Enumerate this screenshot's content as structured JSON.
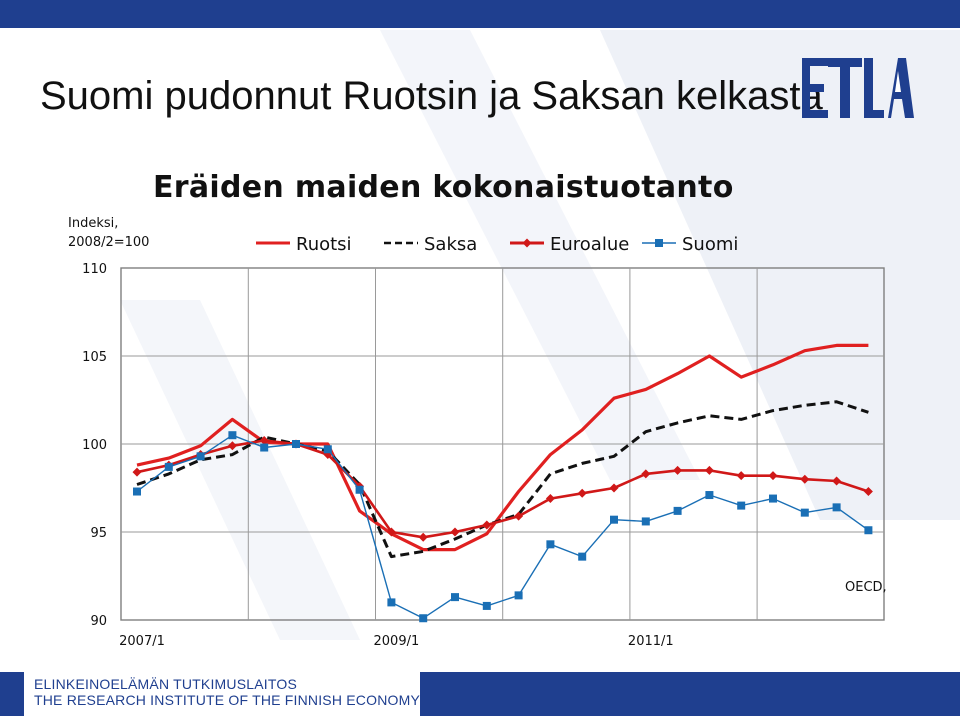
{
  "slide": {
    "title": "Suomi pudonnut Ruotsin ja Saksan kelkasta",
    "logo_text": "ETLA",
    "footer_line1": "ELINKEINOELÄMÄN TUTKIMUSLAITOS",
    "footer_line2": "THE RESEARCH INSTITUTE OF THE FINNISH ECONOMY",
    "brand_color": "#1f3f8f"
  },
  "chart_data": {
    "type": "line",
    "title": "Eräiden maiden kokonaistuotanto",
    "ylabel_line1": "Indeksi,",
    "ylabel_line2": "2008/2=100",
    "source_note": "OECD,",
    "ylim": [
      90,
      110
    ],
    "yticks": [
      "110",
      "105",
      "100",
      "95",
      "90"
    ],
    "xtick_labels": [
      "2007/1",
      "2009/1",
      "2011/1"
    ],
    "grid": true,
    "legend_position": "top",
    "x": [
      "2007/1",
      "2007/2",
      "2007/3",
      "2007/4",
      "2008/1",
      "2008/2",
      "2008/3",
      "2008/4",
      "2009/1",
      "2009/2",
      "2009/3",
      "2009/4",
      "2010/1",
      "2010/2",
      "2010/3",
      "2010/4",
      "2011/1",
      "2011/2",
      "2011/3",
      "2011/4",
      "2012/1",
      "2012/2",
      "2012/3",
      "2012/4"
    ],
    "series": [
      {
        "name": "Ruotsi",
        "color": "#e02020",
        "dash": "solid",
        "marker": "none",
        "values": [
          98.8,
          99.2,
          99.9,
          101.4,
          100.1,
          100.0,
          100.0,
          96.2,
          94.9,
          94.0,
          94.0,
          94.9,
          97.3,
          99.4,
          100.8,
          102.6,
          103.1,
          104.0,
          105.0,
          103.8,
          104.5,
          105.3,
          105.6,
          105.6
        ]
      },
      {
        "name": "Saksa",
        "color": "#111111",
        "dash": "dashed",
        "marker": "none",
        "values": [
          97.7,
          98.3,
          99.1,
          99.4,
          100.4,
          100.0,
          99.6,
          97.7,
          93.6,
          93.9,
          94.6,
          95.4,
          96.0,
          98.3,
          98.9,
          99.3,
          100.7,
          101.2,
          101.6,
          101.4,
          101.9,
          102.2,
          102.4,
          101.8
        ]
      },
      {
        "name": "Euroalue",
        "color": "#d01818",
        "dash": "solid",
        "marker": "diamond",
        "values": [
          98.4,
          98.8,
          99.4,
          99.9,
          100.2,
          100.0,
          99.4,
          97.6,
          95.0,
          94.7,
          95.0,
          95.4,
          95.9,
          96.9,
          97.2,
          97.5,
          98.3,
          98.5,
          98.5,
          98.2,
          98.2,
          98.0,
          97.9,
          97.3
        ]
      },
      {
        "name": "Suomi",
        "color": "#1a6fb5",
        "dash": "solid",
        "marker": "square",
        "values": [
          97.3,
          98.7,
          99.3,
          100.5,
          99.8,
          100.0,
          99.7,
          97.4,
          91.0,
          90.1,
          91.3,
          90.8,
          91.4,
          94.3,
          93.6,
          95.7,
          95.6,
          96.2,
          97.1,
          96.5,
          96.9,
          96.1,
          96.4,
          95.1
        ]
      }
    ]
  }
}
